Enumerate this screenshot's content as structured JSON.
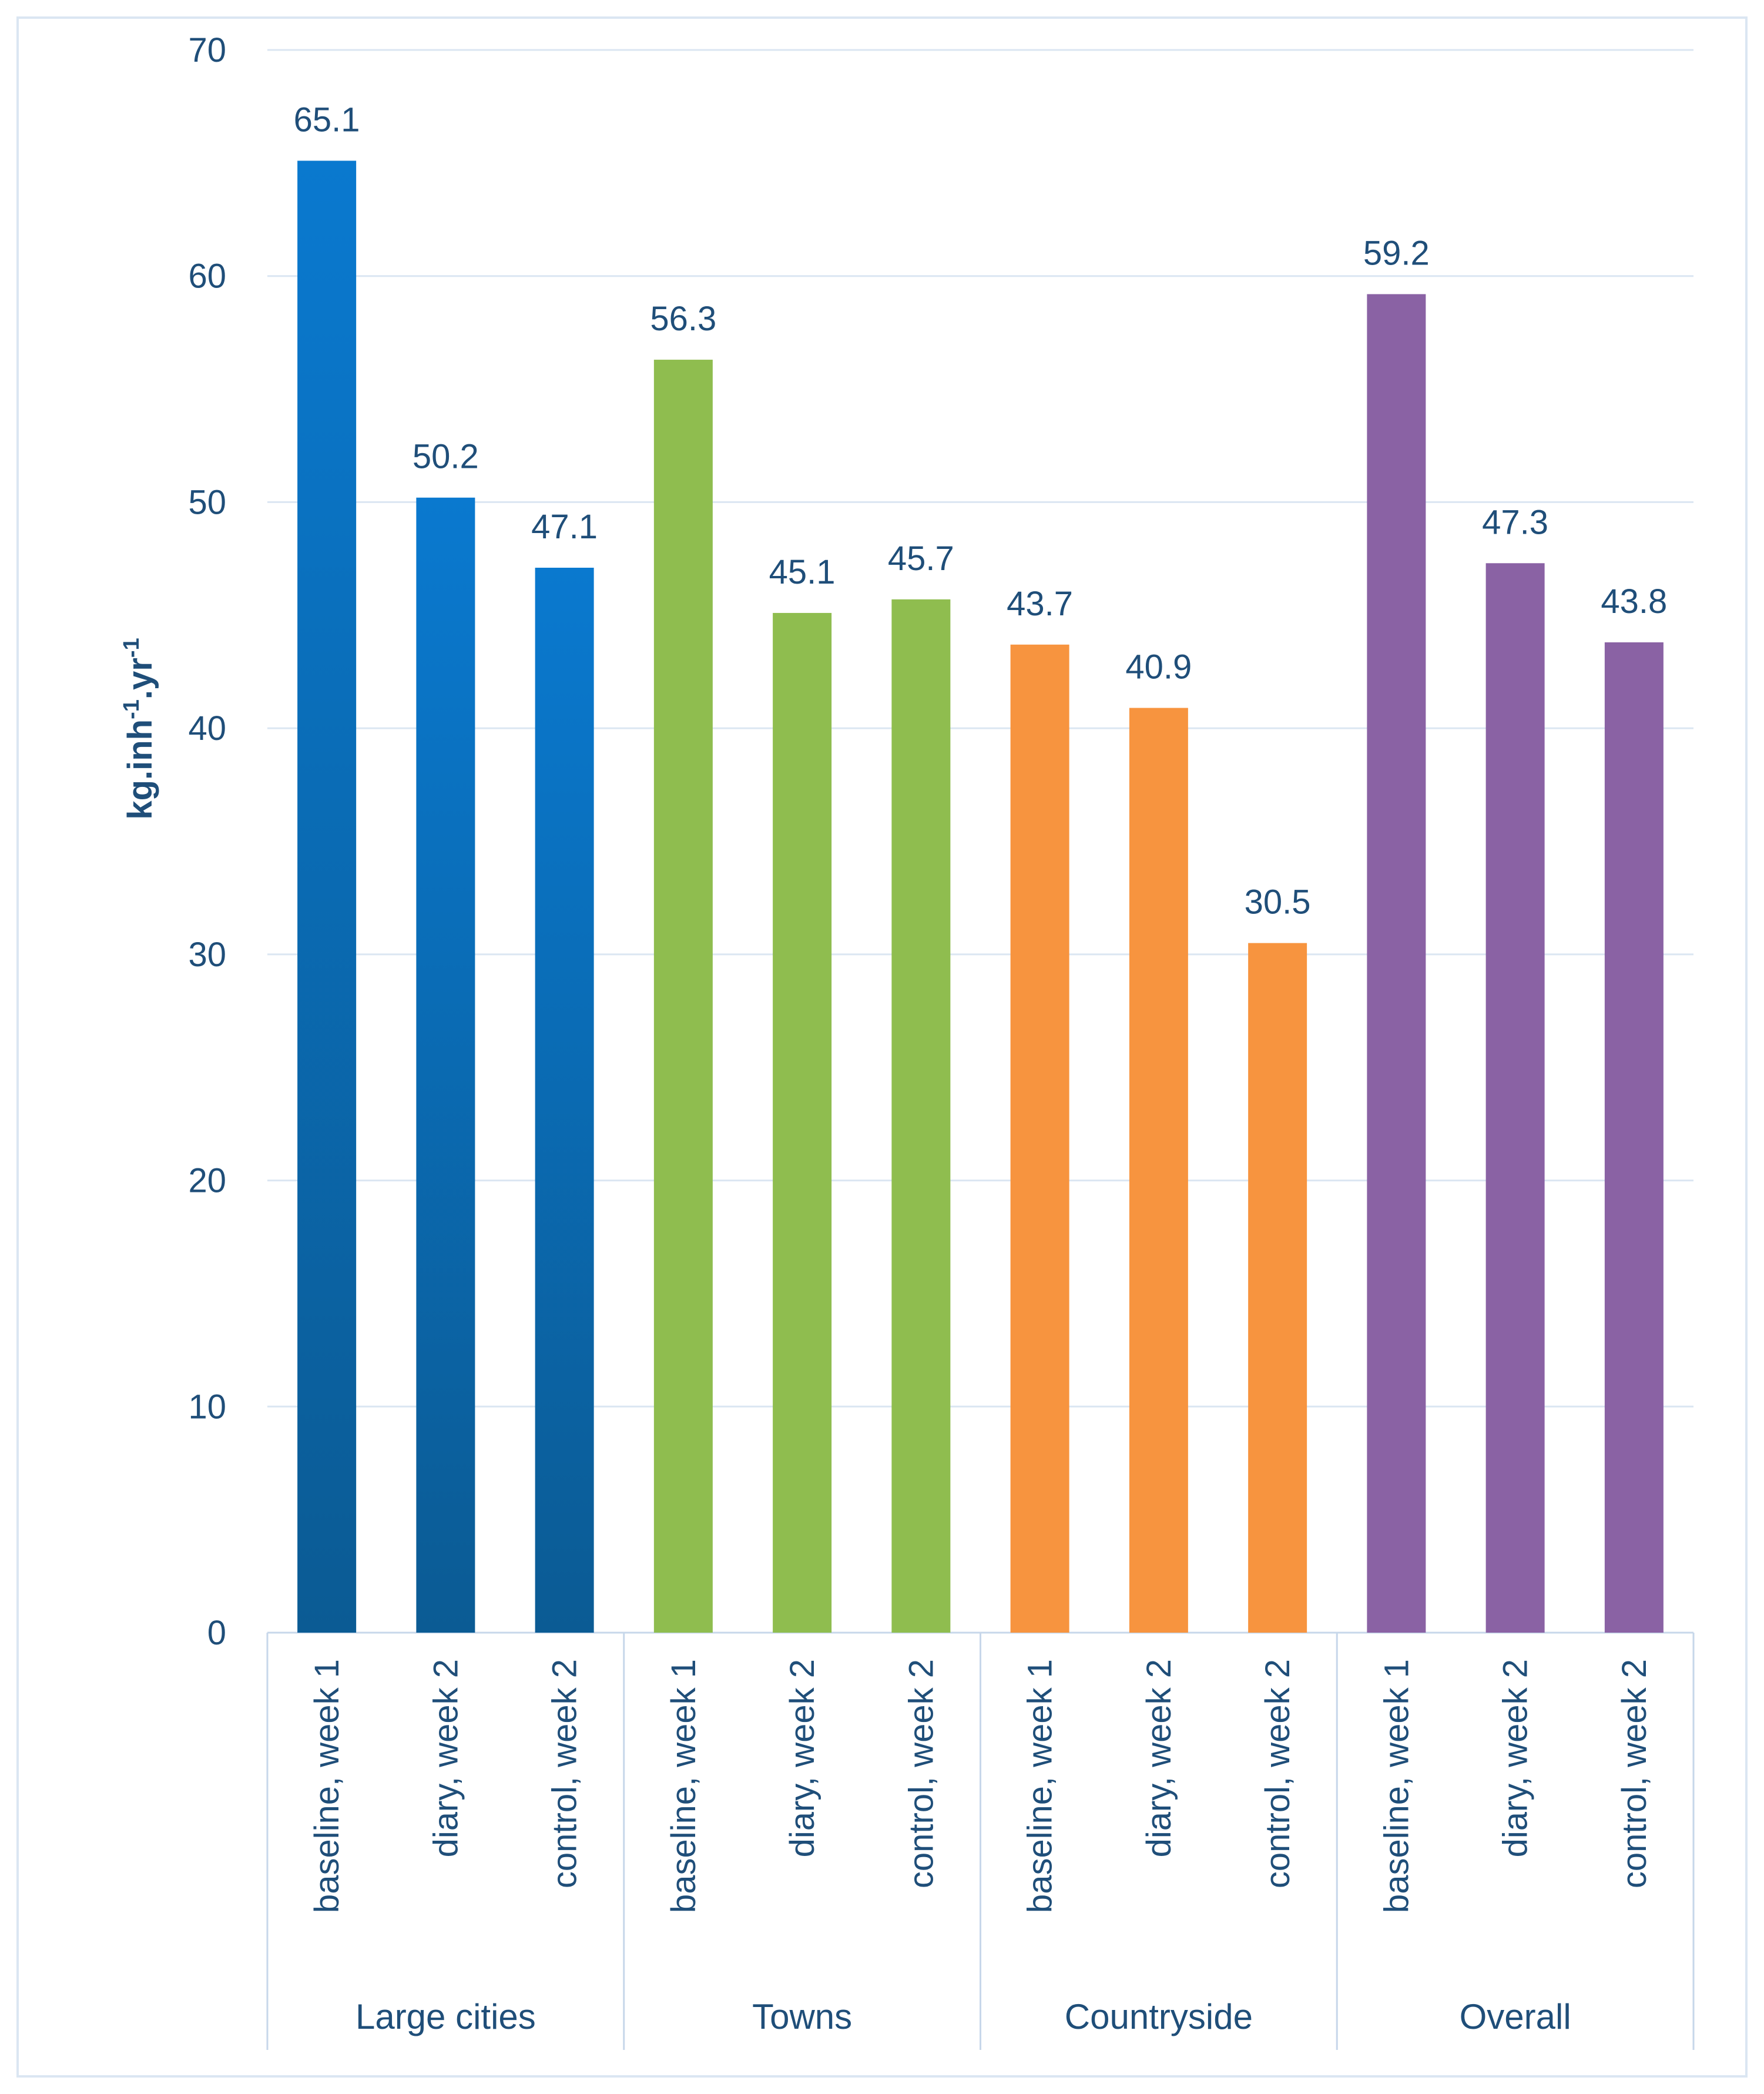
{
  "chart_data": {
    "type": "bar",
    "title": "",
    "xlabel": "",
    "ylabel": {
      "base": "kg.inh",
      "sup1": "-1",
      "mid": ".yr",
      "sup2": "-1"
    },
    "ylim": [
      0,
      70
    ],
    "yticks": [
      0,
      10,
      20,
      30,
      40,
      50,
      60,
      70
    ],
    "yticks_text": [
      "0",
      "10",
      "20",
      "30",
      "40",
      "50",
      "60",
      "70"
    ],
    "grid": true,
    "legend": "none",
    "groups": [
      {
        "name": "Large cities",
        "color": "#0a79cf",
        "color_bottom": "#0b5b94",
        "bars": [
          {
            "label": "baseline, week 1",
            "value": 65.1,
            "value_text": "65.1"
          },
          {
            "label": "diary, week 2",
            "value": 50.2,
            "value_text": "50.2"
          },
          {
            "label": "control, week 2",
            "value": 47.1,
            "value_text": "47.1"
          }
        ]
      },
      {
        "name": "Towns",
        "color": "#8fbd4f",
        "bars": [
          {
            "label": "baseline, week 1",
            "value": 56.3,
            "value_text": "56.3"
          },
          {
            "label": "diary, week 2",
            "value": 45.1,
            "value_text": "45.1"
          },
          {
            "label": "control, week 2",
            "value": 45.7,
            "value_text": "45.7"
          }
        ]
      },
      {
        "name": "Countryside",
        "color": "#f7943f",
        "bars": [
          {
            "label": "baseline, week 1",
            "value": 43.7,
            "value_text": "43.7"
          },
          {
            "label": "diary, week 2",
            "value": 40.9,
            "value_text": "40.9"
          },
          {
            "label": "control, week 2",
            "value": 30.5,
            "value_text": "30.5"
          }
        ]
      },
      {
        "name": "Overall",
        "color": "#8a62a4",
        "bars": [
          {
            "label": "baseline, week 1",
            "value": 59.2,
            "value_text": "59.2"
          },
          {
            "label": "diary, week 2",
            "value": 47.3,
            "value_text": "47.3"
          },
          {
            "label": "control, week 2",
            "value": 43.8,
            "value_text": "43.8"
          }
        ]
      }
    ],
    "colors": {
      "text": "#1f4e79",
      "grid": "#dbe6f2",
      "axis": "#c7d7ea"
    }
  }
}
